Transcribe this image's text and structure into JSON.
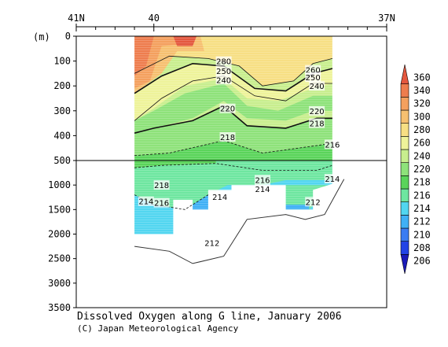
{
  "chart_data": {
    "type": "contour",
    "title": "Dissolved Oxygen along G line, January 2006",
    "credit": "(C) Japan Meteorological Agency",
    "ylabel": "(m)",
    "x_axis": {
      "range": [
        41,
        37
      ],
      "tick_labels": [
        {
          "value": 41,
          "label": "41N"
        },
        {
          "value": 40,
          "label": "40"
        },
        {
          "value": 37,
          "label": "37N"
        }
      ],
      "minor_ticks": [
        40.75,
        40.5,
        40.25,
        39.75,
        39.5,
        39.25,
        39,
        38.75,
        38.5,
        38.25,
        38,
        37.75,
        37.5,
        37.25
      ]
    },
    "y_axis_upper": {
      "range": [
        0,
        500
      ],
      "tick_labels": [
        0,
        100,
        200,
        300,
        400,
        500
      ]
    },
    "y_axis_lower": {
      "range": [
        500,
        3500
      ],
      "tick_labels": [
        1000,
        1500,
        2000,
        2500,
        3000,
        3500
      ]
    },
    "colorbar": {
      "levels": [
        206,
        208,
        210,
        212,
        214,
        216,
        218,
        220,
        240,
        260,
        280,
        300,
        320,
        340,
        360
      ],
      "tick_labels": [
        "206",
        "208",
        "210",
        "212",
        "214",
        "216",
        "218",
        "220",
        "240",
        "260",
        "280",
        "300",
        "320",
        "340",
        "360"
      ],
      "colors": [
        "#1a1ab8",
        "#2244e6",
        "#3a7cf2",
        "#3fb0f5",
        "#52d6f0",
        "#6ee6a0",
        "#5ad45a",
        "#8ee27a",
        "#c8ee8e",
        "#eef39a",
        "#f7df84",
        "#f6c070",
        "#f4a05e",
        "#ee7d4e",
        "#e4573e"
      ]
    },
    "contour_labels": [
      {
        "x": 39.1,
        "y": 100,
        "text": "280"
      },
      {
        "x": 39.1,
        "y": 140,
        "text": "250"
      },
      {
        "x": 39.1,
        "y": 175,
        "text": "240"
      },
      {
        "x": 37.95,
        "y": 135,
        "text": "260"
      },
      {
        "x": 37.95,
        "y": 165,
        "text": "250"
      },
      {
        "x": 37.9,
        "y": 200,
        "text": "240"
      },
      {
        "x": 39.05,
        "y": 290,
        "text": "220"
      },
      {
        "x": 37.9,
        "y": 300,
        "text": "220"
      },
      {
        "x": 37.9,
        "y": 350,
        "text": "218"
      },
      {
        "x": 39.05,
        "y": 405,
        "text": "218"
      },
      {
        "x": 37.7,
        "y": 435,
        "text": "216"
      },
      {
        "x": 38.6,
        "y": 890,
        "text": "216"
      },
      {
        "x": 37.7,
        "y": 870,
        "text": "214"
      },
      {
        "x": 38.6,
        "y": 1080,
        "text": "214"
      },
      {
        "x": 39.9,
        "y": 1000,
        "text": "218"
      },
      {
        "x": 40.1,
        "y": 1330,
        "text": "214"
      },
      {
        "x": 39.9,
        "y": 1360,
        "text": "216"
      },
      {
        "x": 39.15,
        "y": 1240,
        "text": "214"
      },
      {
        "x": 37.95,
        "y": 1340,
        "text": "212"
      },
      {
        "x": 39.25,
        "y": 2180,
        "text": "212"
      }
    ]
  }
}
